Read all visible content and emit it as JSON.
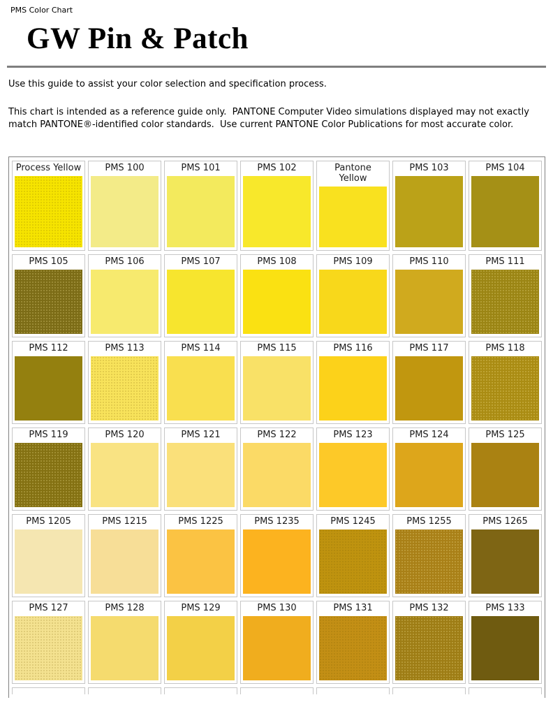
{
  "page": {
    "breadcrumb": "PMS Color Chart",
    "title": "GW Pin & Patch",
    "intro": "Use this guide to assist your color selection and specification process.",
    "disclaimer": "This chart is intended as a reference guide only.  PANTONE Computer Video simulations displayed may not exactly match PANTONE®-identified color standards.  Use current PANTONE Color Publications for most accurate color."
  },
  "chart": {
    "columns": 7,
    "rows": [
      {
        "cells": [
          {
            "label": "Process Yellow",
            "color": "#F6E400",
            "dots": true
          },
          {
            "label": "PMS 100",
            "color": "#F3EB88",
            "dots": false
          },
          {
            "label": "PMS 101",
            "color": "#F3EA5D",
            "dots": false
          },
          {
            "label": "PMS 102",
            "color": "#F8E82B",
            "dots": false
          },
          {
            "label": "Pantone Yellow",
            "color": "#F9E11F",
            "dots": false,
            "two_line": true
          },
          {
            "label": "PMS 103",
            "color": "#BBA218",
            "dots": false
          },
          {
            "label": "PMS 104",
            "color": "#A59016",
            "dots": false
          }
        ]
      },
      {
        "cells": [
          {
            "label": "PMS 105",
            "color": "#7C6C16",
            "dots": true
          },
          {
            "label": "PMS 106",
            "color": "#F7EA6E",
            "dots": false
          },
          {
            "label": "PMS 107",
            "color": "#F7E52E",
            "dots": false
          },
          {
            "label": "PMS 108",
            "color": "#FAE112",
            "dots": false
          },
          {
            "label": "PMS 109",
            "color": "#F8D81B",
            "dots": false
          },
          {
            "label": "PMS 110",
            "color": "#D0AA1E",
            "dots": false
          },
          {
            "label": "PMS 111",
            "color": "#9B8514",
            "dots": true
          }
        ]
      },
      {
        "cells": [
          {
            "label": "PMS 112",
            "color": "#94800F",
            "dots": false
          },
          {
            "label": "PMS 113",
            "color": "#F8E35B",
            "dots": true
          },
          {
            "label": "PMS 114",
            "color": "#F9DF4F",
            "dots": false
          },
          {
            "label": "PMS 115",
            "color": "#F9E167",
            "dots": false
          },
          {
            "label": "PMS 116",
            "color": "#FCD21A",
            "dots": false
          },
          {
            "label": "PMS 117",
            "color": "#C1970F",
            "dots": false
          },
          {
            "label": "PMS 118",
            "color": "#AA8C13",
            "dots": true
          }
        ]
      },
      {
        "cells": [
          {
            "label": "PMS 119",
            "color": "#847112",
            "dots": true
          },
          {
            "label": "PMS 120",
            "color": "#F9E383",
            "dots": false
          },
          {
            "label": "PMS 121",
            "color": "#FAE07A",
            "dots": false
          },
          {
            "label": "PMS 122",
            "color": "#FBDA66",
            "dots": false
          },
          {
            "label": "PMS 123",
            "color": "#FDC928",
            "dots": false
          },
          {
            "label": "PMS 124",
            "color": "#DDA61B",
            "dots": false
          },
          {
            "label": "PMS 125",
            "color": "#AA8212",
            "dots": false
          }
        ]
      },
      {
        "cells": [
          {
            "label": "PMS 1205",
            "color": "#F5E6B1",
            "dots": false
          },
          {
            "label": "PMS 1215",
            "color": "#F7DE97",
            "dots": false
          },
          {
            "label": "PMS 1225",
            "color": "#FBC343",
            "dots": false
          },
          {
            "label": "PMS 1235",
            "color": "#FCB31F",
            "dots": false
          },
          {
            "label": "PMS 1245",
            "color": "#BF930F",
            "dots": true
          },
          {
            "label": "PMS 1255",
            "color": "#A98017",
            "dots": true
          },
          {
            "label": "PMS 1265",
            "color": "#7E6514",
            "dots": false
          }
        ]
      },
      {
        "cells": [
          {
            "label": "PMS 127",
            "color": "#F4E290",
            "dots": true
          },
          {
            "label": "PMS 128",
            "color": "#F5DB6E",
            "dots": false
          },
          {
            "label": "PMS 129",
            "color": "#F3D047",
            "dots": false
          },
          {
            "label": "PMS 130",
            "color": "#F0AD1E",
            "dots": false
          },
          {
            "label": "PMS 131",
            "color": "#C38F15",
            "dots": true
          },
          {
            "label": "PMS 132",
            "color": "#9E7D15",
            "dots": true
          },
          {
            "label": "PMS 133",
            "color": "#6F5B10",
            "dots": false
          }
        ]
      }
    ]
  }
}
